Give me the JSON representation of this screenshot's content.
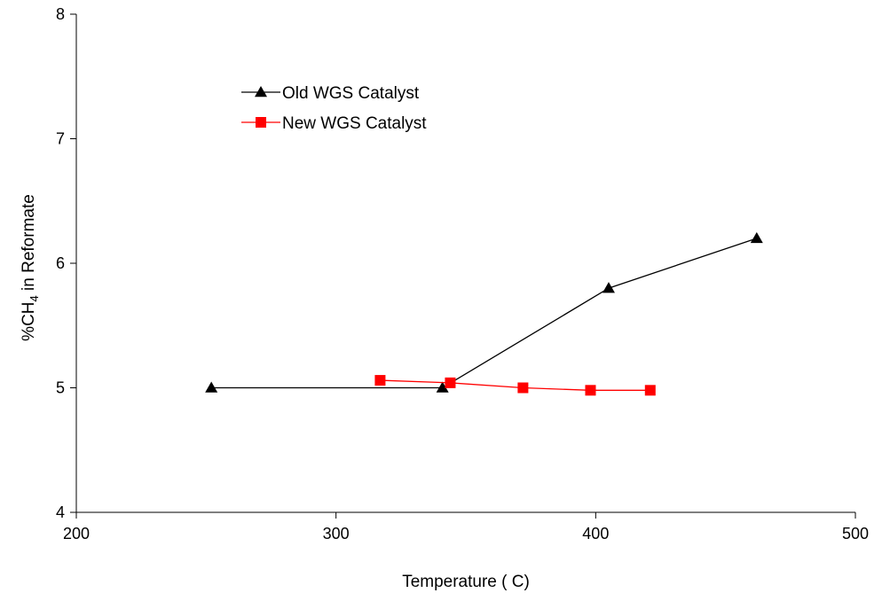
{
  "chart_data": {
    "type": "line",
    "xlabel": "Temperature ( C)",
    "ylabel_parts": [
      "%CH",
      "4",
      " in Reformate"
    ],
    "xlim": [
      200,
      500
    ],
    "ylim": [
      4,
      8
    ],
    "x_ticks": [
      200,
      300,
      400,
      500
    ],
    "y_ticks": [
      4,
      5,
      6,
      7,
      8
    ],
    "grid": false,
    "legend_position": "top-left",
    "series": [
      {
        "name": "Old WGS Catalyst",
        "color": "#000000",
        "marker": "triangle",
        "points": [
          [
            252,
            5.0
          ],
          [
            341,
            5.0
          ],
          [
            405,
            5.8
          ],
          [
            462,
            6.2
          ]
        ]
      },
      {
        "name": "New WGS Catalyst",
        "color": "#ff0000",
        "marker": "square",
        "points": [
          [
            317,
            5.06
          ],
          [
            344,
            5.04
          ],
          [
            372,
            5.0
          ],
          [
            398,
            4.98
          ],
          [
            421,
            4.98
          ]
        ]
      }
    ]
  }
}
